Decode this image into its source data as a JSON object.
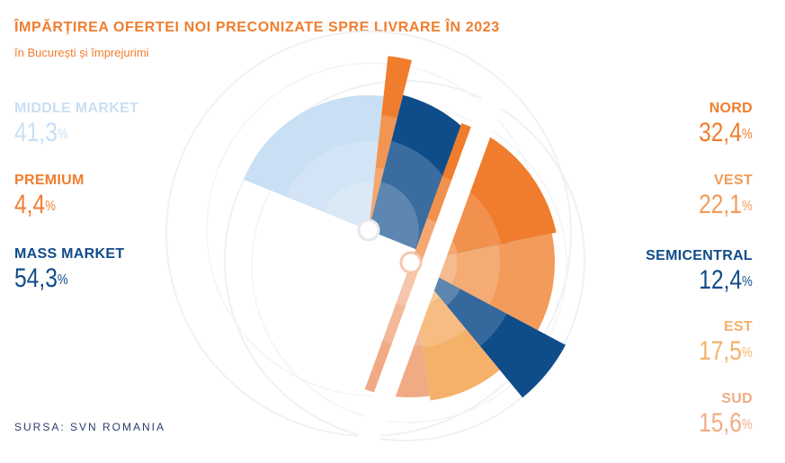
{
  "title": "ÎMPĂRȚIREA OFERTEI NOI PRECONIZATE SPRE LIVRARE ÎN 2023",
  "subtitle": "în București și împrejurimi",
  "source": "SURSA: SVN ROMANIA",
  "percent_sign": "%",
  "left_legend": [
    {
      "label": "MIDDLE MARKET",
      "value": "41,3",
      "color": "#c9dff3"
    },
    {
      "label": "PREMIUM",
      "value": "4,4",
      "color": "#f07d2d"
    },
    {
      "label": "MASS MARKET",
      "value": "54,3",
      "color": "#0f4c8a"
    }
  ],
  "right_legend": [
    {
      "label": "NORD",
      "value": "32,4",
      "color": "#f07d2d"
    },
    {
      "label": "VEST",
      "value": "22,1",
      "color": "#f29b5a"
    },
    {
      "label": "SEMICENTRAL",
      "value": "12,4",
      "color": "#0f4c8a"
    },
    {
      "label": "EST",
      "value": "17,5",
      "color": "#f5b06a"
    },
    {
      "label": "SUD",
      "value": "15,6",
      "color": "#f0ab85"
    }
  ],
  "chart_data": [
    {
      "type": "pie",
      "categories": [
        "MIDDLE MARKET",
        "PREMIUM",
        "MASS MARKET"
      ],
      "values": [
        41.3,
        4.4,
        54.3
      ],
      "colors": [
        "#c9dff3",
        "#f07d2d",
        "#0f4c8a"
      ]
    },
    {
      "type": "pie",
      "categories": [
        "NORD",
        "VEST",
        "SEMICENTRAL",
        "EST",
        "SUD"
      ],
      "values": [
        32.4,
        22.1,
        12.4,
        17.5,
        15.6
      ],
      "colors": [
        "#f07d2d",
        "#f29b5a",
        "#0f4c8a",
        "#f5b06a",
        "#f0ab85"
      ]
    }
  ]
}
